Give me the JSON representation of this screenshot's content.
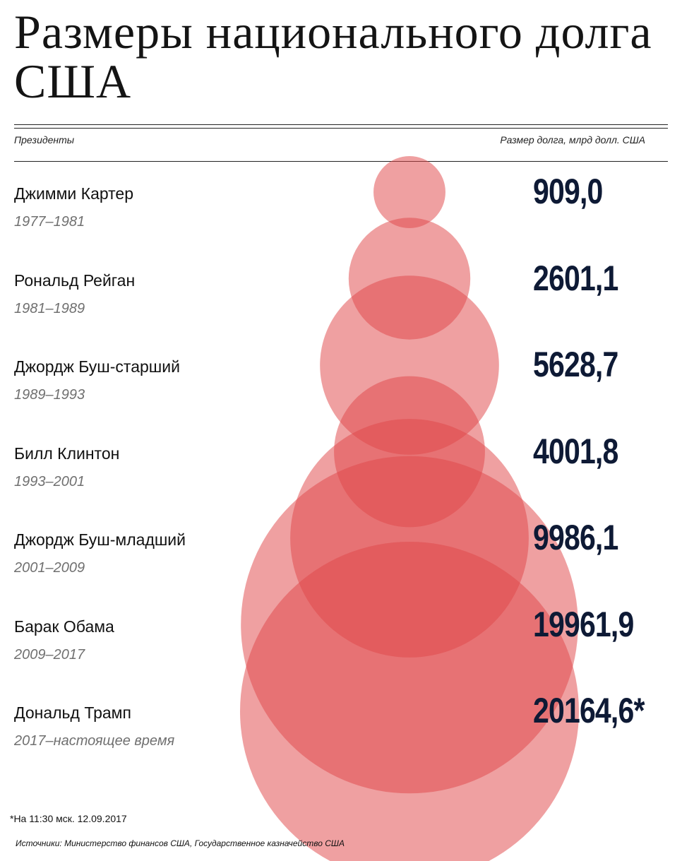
{
  "title": "Размеры национального долга США",
  "header": {
    "left": "Президенты",
    "right": "Размер долга, млрд долл. США"
  },
  "chart_data": {
    "type": "bubble",
    "title": "Размеры национального долга США",
    "unit": "млрд долл. США",
    "series": [
      {
        "name": "Джимми Картер",
        "period": "1977–1981",
        "value": 909.0,
        "label": "909,0"
      },
      {
        "name": "Рональд Рейган",
        "period": "1981–1989",
        "value": 2601.1,
        "label": "2601,1"
      },
      {
        "name": "Джордж Буш-старший",
        "period": "1989–1993",
        "value": 5628.7,
        "label": "5628,7"
      },
      {
        "name": "Билл Клинтон",
        "period": "1993–2001",
        "value": 4001.8,
        "label": "4001,8"
      },
      {
        "name": "Джордж Буш-младший",
        "period": "2001–2009",
        "value": 9986.1,
        "label": "9986,1"
      },
      {
        "name": "Барак Обама",
        "period": "2009–2017",
        "value": 19961.9,
        "label": "19961,9"
      },
      {
        "name": "Дональд Трамп",
        "period": "2017–настоящее время",
        "value": 20164.6,
        "label": "20164,6*"
      }
    ],
    "colors": {
      "bubble": "#e0484a",
      "value_text": "#0e1a35"
    }
  },
  "footnote": "*На 11:30 мск. 12.09.2017",
  "source": "Источники: Министерство финансов США, Государственное казначейство США"
}
